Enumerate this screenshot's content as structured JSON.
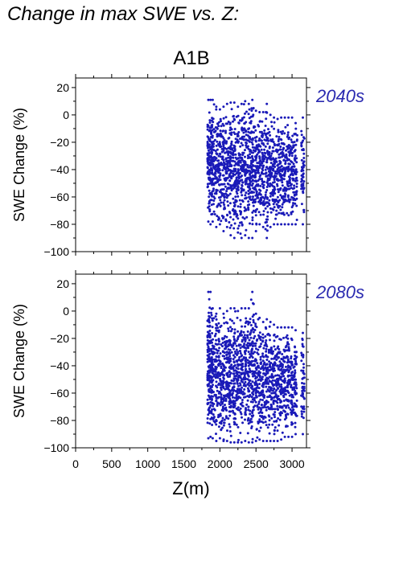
{
  "page_title": "Change in max SWE vs. Z:",
  "scenario_title": "A1B",
  "colors": {
    "points": "#1a1ab8",
    "period_label": "#2a2ab0",
    "axis": "#000000"
  },
  "chart_data": [
    {
      "type": "scatter",
      "period_label": "2040s",
      "ylabel": "SWE Change (%)",
      "xlabel": "",
      "xlim": [
        0,
        3200
      ],
      "ylim": [
        -100,
        27
      ],
      "y_ticks": [
        "20",
        "0",
        "−20",
        "−40",
        "−60",
        "−80",
        "−100"
      ],
      "x_ticks": [],
      "grid": false,
      "columns": [
        {
          "x": 1840,
          "ymin": -78,
          "ymax": 11
        },
        {
          "x": 1870,
          "ymin": -80,
          "ymax": 11
        },
        {
          "x": 1900,
          "ymin": -78,
          "ymax": 11
        },
        {
          "x": 1950,
          "ymin": -82,
          "ymax": 6
        },
        {
          "x": 2000,
          "ymin": -80,
          "ymax": 4
        },
        {
          "x": 2050,
          "ymin": -85,
          "ymax": 6
        },
        {
          "x": 2100,
          "ymin": -82,
          "ymax": 8
        },
        {
          "x": 2150,
          "ymin": -88,
          "ymax": 9
        },
        {
          "x": 2200,
          "ymin": -90,
          "ymax": 9
        },
        {
          "x": 2250,
          "ymin": -86,
          "ymax": 6
        },
        {
          "x": 2300,
          "ymin": -90,
          "ymax": 8
        },
        {
          "x": 2350,
          "ymin": -88,
          "ymax": 10
        },
        {
          "x": 2400,
          "ymin": -90,
          "ymax": 8
        },
        {
          "x": 2450,
          "ymin": -90,
          "ymax": 11
        },
        {
          "x": 2500,
          "ymin": -85,
          "ymax": 3
        },
        {
          "x": 2550,
          "ymin": -80,
          "ymax": 2
        },
        {
          "x": 2600,
          "ymin": -82,
          "ymax": 2
        },
        {
          "x": 2650,
          "ymin": -90,
          "ymax": 8
        },
        {
          "x": 2700,
          "ymin": -82,
          "ymax": 0
        },
        {
          "x": 2750,
          "ymin": -80,
          "ymax": -2
        },
        {
          "x": 2800,
          "ymin": -80,
          "ymax": -3
        },
        {
          "x": 2850,
          "ymin": -80,
          "ymax": -2
        },
        {
          "x": 2900,
          "ymin": -80,
          "ymax": -2
        },
        {
          "x": 2950,
          "ymin": -80,
          "ymax": -2
        },
        {
          "x": 3000,
          "ymin": -80,
          "ymax": -2
        },
        {
          "x": 3050,
          "ymin": -80,
          "ymax": -6
        },
        {
          "x": 3150,
          "ymin": -80,
          "ymax": -2
        }
      ]
    },
    {
      "type": "scatter",
      "period_label": "2080s",
      "ylabel": "SWE Change (%)",
      "xlabel": "Z(m)",
      "xlim": [
        0,
        3200
      ],
      "ylim": [
        -100,
        27
      ],
      "y_ticks": [
        "20",
        "0",
        "−20",
        "−40",
        "−60",
        "−80",
        "−100"
      ],
      "x_ticks": [
        "0",
        "500",
        "1000",
        "1500",
        "2000",
        "2500",
        "3000"
      ],
      "grid": false,
      "columns": [
        {
          "x": 1840,
          "ymin": -93,
          "ymax": 14
        },
        {
          "x": 1870,
          "ymin": -92,
          "ymax": 14
        },
        {
          "x": 1900,
          "ymin": -93,
          "ymax": 2
        },
        {
          "x": 1950,
          "ymin": -95,
          "ymax": -2
        },
        {
          "x": 2000,
          "ymin": -93,
          "ymax": 2
        },
        {
          "x": 2050,
          "ymin": -95,
          "ymax": -2
        },
        {
          "x": 2100,
          "ymin": -95,
          "ymax": 0
        },
        {
          "x": 2150,
          "ymin": -96,
          "ymax": 2
        },
        {
          "x": 2200,
          "ymin": -96,
          "ymax": 2
        },
        {
          "x": 2250,
          "ymin": -96,
          "ymax": 0
        },
        {
          "x": 2300,
          "ymin": -96,
          "ymax": 2
        },
        {
          "x": 2350,
          "ymin": -95,
          "ymax": 2
        },
        {
          "x": 2400,
          "ymin": -96,
          "ymax": 2
        },
        {
          "x": 2450,
          "ymin": -96,
          "ymax": 14
        },
        {
          "x": 2500,
          "ymin": -95,
          "ymax": -2
        },
        {
          "x": 2550,
          "ymin": -94,
          "ymax": -5
        },
        {
          "x": 2600,
          "ymin": -95,
          "ymax": -8
        },
        {
          "x": 2650,
          "ymin": -95,
          "ymax": -6
        },
        {
          "x": 2700,
          "ymin": -95,
          "ymax": -8
        },
        {
          "x": 2750,
          "ymin": -95,
          "ymax": -10
        },
        {
          "x": 2800,
          "ymin": -95,
          "ymax": -12
        },
        {
          "x": 2850,
          "ymin": -94,
          "ymax": -12
        },
        {
          "x": 2900,
          "ymin": -92,
          "ymax": -12
        },
        {
          "x": 2950,
          "ymin": -92,
          "ymax": -12
        },
        {
          "x": 3000,
          "ymin": -92,
          "ymax": -12
        },
        {
          "x": 3050,
          "ymin": -90,
          "ymax": -14
        },
        {
          "x": 3150,
          "ymin": -90,
          "ymax": -16
        }
      ]
    }
  ]
}
